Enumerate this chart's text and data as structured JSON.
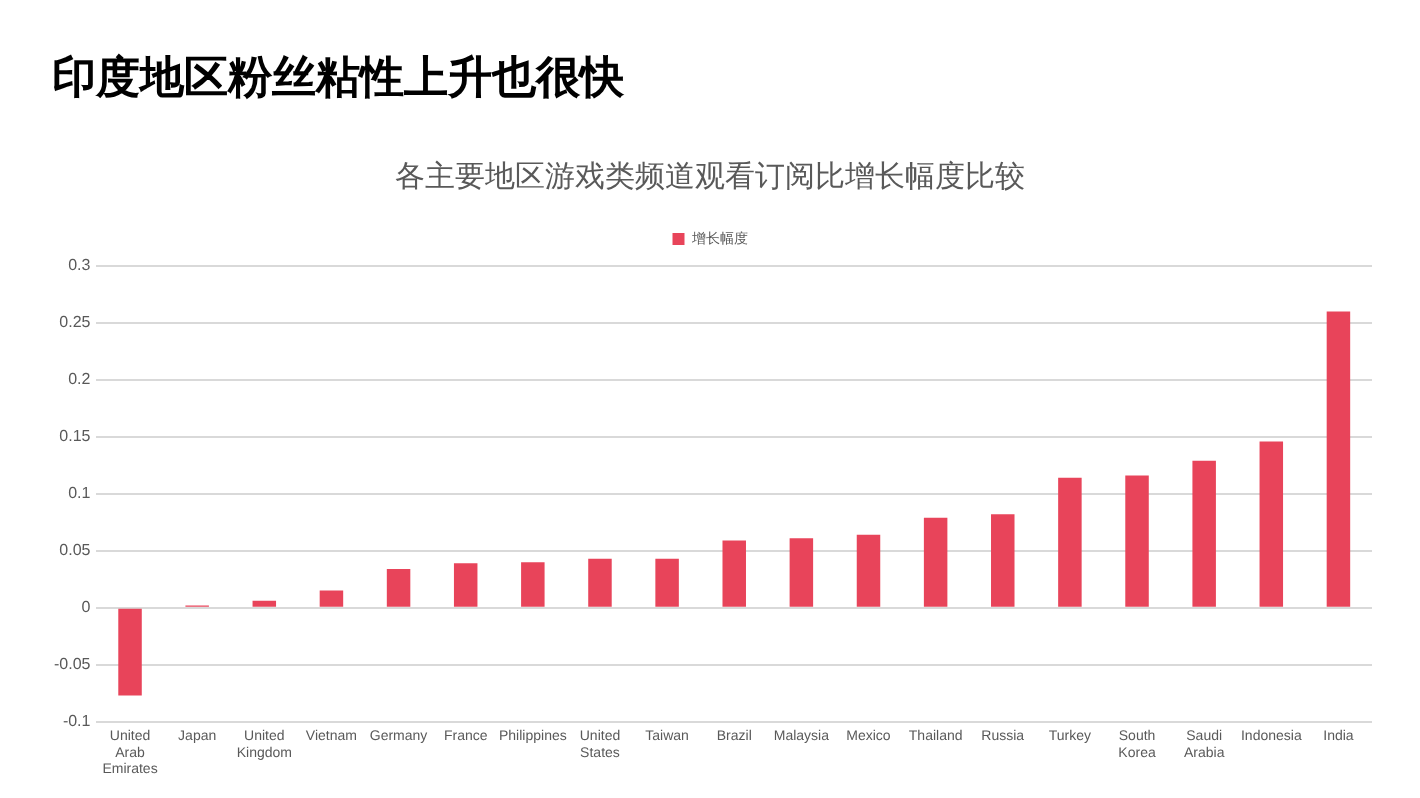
{
  "chart_data": {
    "type": "bar",
    "title": "印度地区粉丝粘性上升也很快",
    "subtitle": "各主要地区游戏类频道观看订阅比增长幅度比较",
    "categories": [
      "United Arab Emirates",
      "Japan",
      "United Kingdom",
      "Vietnam",
      "Germany",
      "France",
      "Philippines",
      "United States",
      "Taiwan",
      "Brazil",
      "Malaysia",
      "Mexico",
      "Thailand",
      "Russia",
      "Turkey",
      "South Korea",
      "Saudi Arabia",
      "Indonesia",
      "India"
    ],
    "series": [
      {
        "name": "增长幅度",
        "color": "#e8445a",
        "values": [
          -0.077,
          0.002,
          0.006,
          0.015,
          0.034,
          0.039,
          0.04,
          0.043,
          0.043,
          0.059,
          0.061,
          0.064,
          0.079,
          0.082,
          0.114,
          0.116,
          0.129,
          0.146,
          0.26
        ]
      }
    ],
    "ylim": [
      -0.1,
      0.3
    ],
    "yticks": [
      -0.1,
      -0.05,
      0,
      0.05,
      0.1,
      0.15,
      0.2,
      0.25,
      0.3
    ],
    "grid": "y",
    "legend": "top"
  }
}
